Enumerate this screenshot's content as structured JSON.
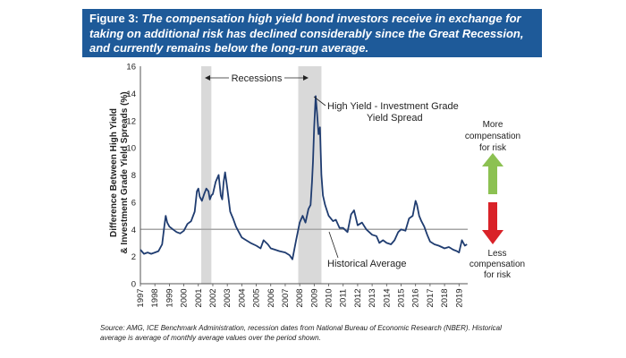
{
  "figure": {
    "label": "Figure 3:",
    "title": "The compensation high yield bond investors receive in exchange for taking on additional risk has declined considerably since the Great Recession, and currently remains below the long-run average.",
    "source": "Source: AMG, ICE Benchmark Administration, recession dates from National Bureau of Economic Research (NBER). Historical average is average of monthly average values over the period shown."
  },
  "colors": {
    "header_bg": "#1e5a99",
    "line": "#1f3c70",
    "recession": "#d9d9d9",
    "average": "#a6a6a6",
    "up_arrow": "#8cc152",
    "down_arrow": "#d92228"
  },
  "chart_data": {
    "type": "line",
    "ylabel_line1": "Difference Between High Yield",
    "ylabel_line2": "& Investment Grade Yield Spreads (%)",
    "ylim": [
      0,
      16
    ],
    "xlim": [
      1997,
      2019.6
    ],
    "yticks": [
      "0",
      "2",
      "4",
      "6",
      "8",
      "10",
      "12",
      "14",
      "16"
    ],
    "xticks": [
      "1997",
      "1998",
      "1999",
      "2000",
      "2001",
      "2002",
      "2003",
      "2004",
      "2005",
      "2006",
      "2007",
      "2008",
      "2009",
      "2010",
      "2011",
      "2012",
      "2013",
      "2014",
      "2015",
      "2016",
      "2017",
      "2018",
      "2019"
    ],
    "historical_average": 4.0,
    "recessions": [
      [
        2001.2,
        2001.9
      ],
      [
        2007.9,
        2009.5
      ]
    ],
    "annotations": {
      "recessions": "Recessions",
      "spread_line1": "High Yield - Investment Grade",
      "spread_line2": "Yield Spread",
      "average": "Historical Average",
      "more_line1": "More",
      "more_line2": "compensation",
      "more_line3": "for risk",
      "less_line1": "Less",
      "less_line2": "compensation",
      "less_line3": "for risk"
    },
    "series": [
      {
        "x": [
          1997.0,
          1997.25,
          1997.5,
          1997.75,
          1998.0,
          1998.25,
          1998.5,
          1998.65,
          1998.75,
          1998.85,
          1999.0,
          1999.25,
          1999.5,
          1999.75,
          2000.0,
          2000.25,
          2000.5,
          2000.75,
          2000.9,
          2001.0,
          2001.1,
          2001.25,
          2001.4,
          2001.55,
          2001.7,
          2001.8,
          2001.9,
          2002.0,
          2002.2,
          2002.4,
          2002.55,
          2002.65,
          2002.75,
          2002.85,
          2003.0,
          2003.2,
          2003.4,
          2003.6,
          2003.8,
          2004.0,
          2004.3,
          2004.6,
          2005.0,
          2005.3,
          2005.5,
          2005.8,
          2006.0,
          2006.3,
          2006.6,
          2007.0,
          2007.3,
          2007.5,
          2007.75,
          2008.0,
          2008.2,
          2008.4,
          2008.6,
          2008.75,
          2008.85,
          2008.92,
          2009.0,
          2009.1,
          2009.2,
          2009.3,
          2009.4,
          2009.5,
          2009.6,
          2009.75,
          2010.0,
          2010.3,
          2010.5,
          2010.75,
          2011.0,
          2011.3,
          2011.55,
          2011.75,
          2012.0,
          2012.3,
          2012.6,
          2013.0,
          2013.3,
          2013.5,
          2013.75,
          2014.0,
          2014.3,
          2014.55,
          2014.8,
          2015.0,
          2015.3,
          2015.55,
          2015.8,
          2016.0,
          2016.1,
          2016.25,
          2016.4,
          2016.6,
          2016.8,
          2017.0,
          2017.3,
          2017.6,
          2018.0,
          2018.3,
          2018.6,
          2018.85,
          2019.0,
          2019.2,
          2019.4,
          2019.55
        ],
        "y": [
          2.5,
          2.2,
          2.3,
          2.2,
          2.3,
          2.4,
          2.9,
          4.2,
          5.0,
          4.5,
          4.2,
          4.0,
          3.8,
          3.7,
          3.9,
          4.4,
          4.6,
          5.3,
          6.8,
          7.0,
          6.4,
          6.1,
          6.6,
          7.0,
          6.8,
          6.2,
          6.5,
          6.6,
          7.5,
          8.0,
          6.5,
          6.2,
          7.5,
          8.2,
          7.0,
          5.3,
          4.8,
          4.2,
          3.8,
          3.4,
          3.2,
          3.0,
          2.8,
          2.6,
          3.2,
          2.9,
          2.6,
          2.5,
          2.4,
          2.3,
          2.1,
          1.8,
          3.2,
          4.5,
          5.0,
          4.5,
          5.5,
          5.8,
          7.5,
          9.0,
          11.5,
          13.8,
          12.5,
          11.0,
          11.5,
          8.0,
          6.5,
          5.8,
          5.0,
          4.6,
          4.7,
          4.1,
          4.1,
          3.8,
          5.1,
          5.4,
          4.3,
          4.5,
          4.0,
          3.6,
          3.5,
          3.0,
          3.2,
          3.0,
          2.9,
          3.2,
          3.8,
          4.0,
          3.9,
          4.8,
          5.0,
          6.1,
          5.8,
          5.0,
          4.6,
          4.2,
          3.6,
          3.1,
          2.9,
          2.8,
          2.6,
          2.7,
          2.5,
          2.4,
          2.3,
          3.2,
          2.8,
          2.9
        ]
      }
    ]
  }
}
